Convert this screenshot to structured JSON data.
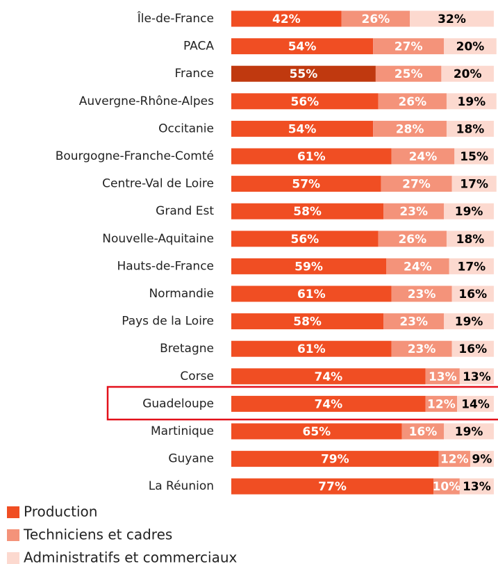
{
  "chart_data": {
    "type": "stacked-bar-horizontal",
    "categories": [
      "Île-de-France",
      "PACA",
      "France",
      "Auvergne-Rhône-Alpes",
      "Occitanie",
      "Bourgogne-Franche-Comté",
      "Centre-Val de Loire",
      "Grand Est",
      "Nouvelle-Aquitaine",
      "Hauts-de-France",
      "Normandie",
      "Pays de la Loire",
      "Bretagne",
      "Corse",
      "Guadeloupe",
      "Martinique",
      "Guyane",
      "La Réunion"
    ],
    "series": [
      {
        "name": "Production",
        "color": "#f04e23",
        "label_color": "#ffffff",
        "point_colors": [
          "#f04e23",
          "#f04e23",
          "#c0390f",
          "#f04e23",
          "#f04e23",
          "#f04e23",
          "#f04e23",
          "#f04e23",
          "#f04e23",
          "#f04e23",
          "#f04e23",
          "#f04e23",
          "#f04e23",
          "#f04e23",
          "#f04e23",
          "#f04e23",
          "#f04e23",
          "#f04e23"
        ],
        "values": [
          42,
          54,
          55,
          56,
          54,
          61,
          57,
          58,
          56,
          59,
          61,
          58,
          61,
          74,
          74,
          65,
          79,
          77
        ],
        "value_labels": [
          "42%",
          "54%",
          "55%",
          "56%",
          "54%",
          "61%",
          "57%",
          "58%",
          "56%",
          "59%",
          "61%",
          "58%",
          "61%",
          "74%",
          "74%",
          "65%",
          "79%",
          "77%"
        ]
      },
      {
        "name": "Techniciens et cadres",
        "color": "#f4937a",
        "label_color": "#ffffff",
        "values": [
          26,
          27,
          25,
          26,
          28,
          24,
          27,
          23,
          26,
          24,
          23,
          23,
          23,
          13,
          12,
          16,
          12,
          10
        ],
        "value_labels": [
          "26%",
          "27%",
          "25%",
          "26%",
          "28%",
          "24%",
          "27%",
          "23%",
          "26%",
          "24%",
          "23%",
          "23%",
          "23%",
          "13%",
          "12%",
          "16%",
          "12%",
          "10%"
        ]
      },
      {
        "name": "Administratifs et commerciaux",
        "color": "#fcd9cf",
        "label_color": "#000000",
        "values": [
          32,
          20,
          20,
          19,
          18,
          15,
          17,
          19,
          18,
          17,
          16,
          19,
          16,
          13,
          14,
          19,
          9,
          13
        ],
        "value_labels": [
          "32%",
          "20%",
          "20%",
          "19%",
          "18%",
          "15%",
          "17%",
          "19%",
          "18%",
          "17%",
          "16%",
          "19%",
          "16%",
          "13%",
          "14%",
          "19%",
          "9%",
          "13%"
        ]
      }
    ]
  }
}
